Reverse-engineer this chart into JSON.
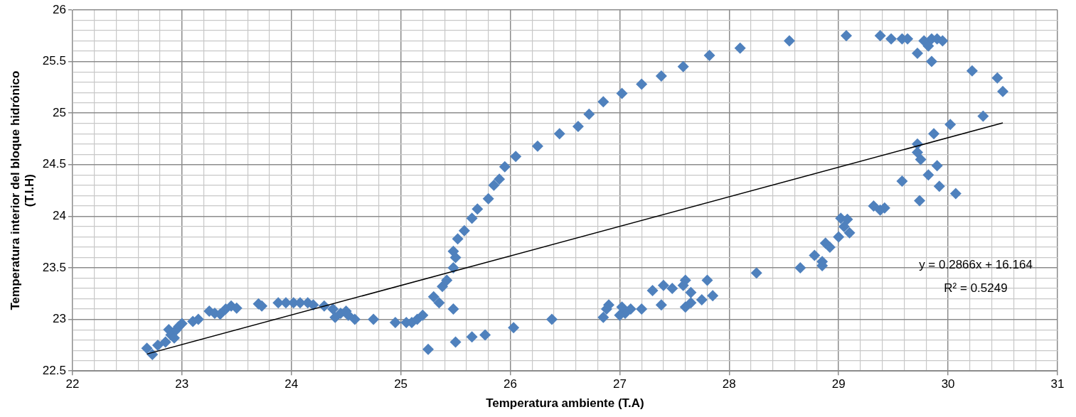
{
  "chart_data": {
    "type": "scatter",
    "xlabel": "Temperatura ambiente (T.A)",
    "ylabel": "Temperatura interior del bloque hidrónico\n(T.I.H)",
    "xlim": [
      22,
      31
    ],
    "xticks": [
      22,
      {
        "value": 22.2,
        "label": null
      },
      {
        "value": 22.4,
        "label": null
      },
      {
        "value": 22.6,
        "label": null
      },
      {
        "value": 22.8,
        "label": null
      },
      23,
      {
        "value": 23.2,
        "label": null
      },
      {
        "value": 23.4,
        "label": null
      },
      {
        "value": 23.6,
        "label": null
      },
      {
        "value": 23.8,
        "label": null
      },
      24,
      {
        "value": 24.2,
        "label": null
      },
      {
        "value": 24.4,
        "label": null
      },
      {
        "value": 24.6,
        "label": null
      },
      {
        "value": 24.8,
        "label": null
      },
      25,
      {
        "value": 25.2,
        "label": null
      },
      {
        "value": 25.4,
        "label": null
      },
      {
        "value": 25.6,
        "label": null
      },
      {
        "value": 25.8,
        "label": null
      },
      26,
      {
        "value": 26.2,
        "label": null
      },
      {
        "value": 26.4,
        "label": null
      },
      {
        "value": 26.6,
        "label": null
      },
      {
        "value": 26.8,
        "label": null
      },
      27,
      {
        "value": 27.2,
        "label": null
      },
      {
        "value": 27.4,
        "label": null
      },
      {
        "value": 27.6,
        "label": null
      },
      {
        "value": 27.8,
        "label": null
      },
      28,
      {
        "value": 28.2,
        "label": null
      },
      {
        "value": 28.4,
        "label": null
      },
      {
        "value": 28.6,
        "label": null
      },
      {
        "value": 28.8,
        "label": null
      },
      29,
      {
        "value": 29.2,
        "label": null
      },
      {
        "value": 29.4,
        "label": null
      },
      {
        "value": 29.6,
        "label": null
      },
      {
        "value": 29.8,
        "label": null
      },
      30,
      {
        "value": 30.2,
        "label": null
      },
      {
        "value": 30.4,
        "label": null
      },
      {
        "value": 30.6,
        "label": null
      },
      {
        "value": 30.8,
        "label": null
      },
      31
    ],
    "ylim": [
      22.5,
      26
    ],
    "yticks": [
      22.5,
      {
        "value": 22.6,
        "label": null
      },
      {
        "value": 22.7,
        "label": null
      },
      {
        "value": 22.8,
        "label": null
      },
      {
        "value": 22.9,
        "label": null
      },
      23,
      {
        "value": 23.1,
        "label": null
      },
      {
        "value": 23.2,
        "label": null
      },
      {
        "value": 23.3,
        "label": null
      },
      {
        "value": 23.4,
        "label": null
      },
      23.5,
      {
        "value": 23.6,
        "label": null
      },
      {
        "value": 23.7,
        "label": null
      },
      {
        "value": 23.8,
        "label": null
      },
      {
        "value": 23.9,
        "label": null
      },
      24,
      {
        "value": 24.1,
        "label": null
      },
      {
        "value": 24.2,
        "label": null
      },
      {
        "value": 24.3,
        "label": null
      },
      {
        "value": 24.4,
        "label": null
      },
      24.5,
      {
        "value": 24.6,
        "label": null
      },
      {
        "value": 24.7,
        "label": null
      },
      {
        "value": 24.8,
        "label": null
      },
      {
        "value": 24.9,
        "label": null
      },
      25,
      {
        "value": 25.1,
        "label": null
      },
      {
        "value": 25.2,
        "label": null
      },
      {
        "value": 25.3,
        "label": null
      },
      {
        "value": 25.4,
        "label": null
      },
      25.5,
      {
        "value": 25.6,
        "label": null
      },
      {
        "value": 25.7,
        "label": null
      },
      {
        "value": 25.8,
        "label": null
      },
      {
        "value": 25.9,
        "label": null
      },
      26
    ],
    "grid": true,
    "legend": false,
    "marker": "diamond",
    "annotations": [
      "y = 0.2866x + 16.164",
      "R² = 0.5249"
    ],
    "series": [
      {
        "color": "#4f81bd",
        "x": [
          22.68,
          22.73,
          22.78,
          22.85,
          22.88,
          22.9,
          22.93,
          22.95,
          22.97,
          23.0,
          23.1,
          23.15,
          23.25,
          23.3,
          23.35,
          23.4,
          23.45,
          23.5,
          23.7,
          23.73,
          23.88,
          23.95,
          24.02,
          24.08,
          24.15,
          24.2,
          24.3,
          24.38,
          24.4,
          24.45,
          24.5,
          24.52,
          24.58,
          24.75,
          24.95,
          25.05,
          25.1,
          25.15,
          25.2,
          25.3,
          25.35,
          25.38,
          25.42,
          25.48,
          25.48,
          25.5,
          25.52,
          25.58,
          25.65,
          25.7,
          25.8,
          25.85,
          25.9,
          25.95,
          26.05,
          26.25,
          26.45,
          26.62,
          26.72,
          26.85,
          27.02,
          27.2,
          27.38,
          27.58,
          27.82,
          28.1,
          28.55,
          29.07,
          29.38,
          29.48,
          29.58,
          29.63,
          29.72,
          29.78,
          29.82,
          29.85,
          29.85,
          29.9,
          29.95,
          30.22,
          30.45,
          30.5,
          30.32,
          30.02,
          29.87,
          29.72,
          29.72,
          29.75,
          29.9,
          29.82,
          29.58,
          29.92,
          30.07,
          29.74,
          29.32,
          29.38,
          29.42,
          29.02,
          29.08,
          29.05,
          29.1,
          29.0,
          28.88,
          28.92,
          28.78,
          28.85,
          28.85,
          28.65,
          28.25,
          27.8,
          27.6,
          27.58,
          27.4,
          27.3,
          27.38,
          27.48,
          27.65,
          27.85,
          27.75,
          27.6,
          27.65,
          27.2,
          27.1,
          27.05,
          27.0,
          26.9,
          26.88,
          26.85,
          27.02,
          26.38,
          26.03,
          25.77,
          25.65,
          25.5,
          25.25,
          25.48
        ],
        "values": [
          22.72,
          22.66,
          22.75,
          22.78,
          22.9,
          22.85,
          22.82,
          22.9,
          22.93,
          22.96,
          22.98,
          23.0,
          23.08,
          23.06,
          23.05,
          23.1,
          23.13,
          23.11,
          23.15,
          23.13,
          23.16,
          23.16,
          23.16,
          23.16,
          23.16,
          23.14,
          23.13,
          23.1,
          23.02,
          23.06,
          23.08,
          23.04,
          23.0,
          23.0,
          22.97,
          22.97,
          22.97,
          23.0,
          23.04,
          23.22,
          23.16,
          23.32,
          23.38,
          23.5,
          23.66,
          23.6,
          23.78,
          23.86,
          23.98,
          24.07,
          24.17,
          24.3,
          24.36,
          24.48,
          24.58,
          24.68,
          24.8,
          24.87,
          24.99,
          25.11,
          25.19,
          25.28,
          25.36,
          25.45,
          25.56,
          25.63,
          25.7,
          25.75,
          25.75,
          25.72,
          25.72,
          25.72,
          25.58,
          25.7,
          25.65,
          25.5,
          25.72,
          25.72,
          25.7,
          25.41,
          25.34,
          25.21,
          24.97,
          24.89,
          24.8,
          24.7,
          24.62,
          24.55,
          24.49,
          24.4,
          24.34,
          24.29,
          24.22,
          24.15,
          24.1,
          24.06,
          24.08,
          23.98,
          23.97,
          23.9,
          23.84,
          23.8,
          23.74,
          23.7,
          23.62,
          23.56,
          23.52,
          23.5,
          23.45,
          23.38,
          23.38,
          23.33,
          23.33,
          23.28,
          23.14,
          23.3,
          23.26,
          23.23,
          23.19,
          23.12,
          23.16,
          23.1,
          23.1,
          23.06,
          23.04,
          23.14,
          23.1,
          23.02,
          23.12,
          23.0,
          22.92,
          22.85,
          22.83,
          22.78,
          22.71,
          23.1
        ]
      },
      {
        "type": "line",
        "color": "#000000",
        "marker": "none",
        "line_style": "solid",
        "x": [
          22.68,
          30.5
        ],
        "values": [
          22.664,
          24.905
        ]
      }
    ]
  }
}
